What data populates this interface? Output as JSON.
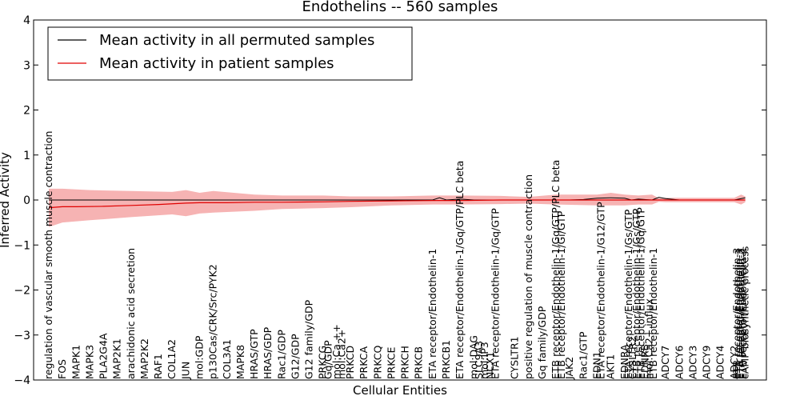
{
  "chart_data": {
    "type": "line",
    "title": "Endothelins -- 560 samples",
    "xlabel": "Cellular Entities",
    "ylabel": "Inferred Activity",
    "ylim": [
      -4,
      4
    ],
    "yticks": [
      4,
      3,
      2,
      1,
      0,
      -1,
      -2,
      -3,
      -4
    ],
    "grid": false,
    "legend_position": "top-left",
    "colors": {
      "permuted": "#000000",
      "patient": "#e00000",
      "band": "#f08080"
    },
    "series": [
      {
        "name": "Mean activity in all permuted samples"
      },
      {
        "name": "Mean activity in patient samples"
      }
    ],
    "labels": [
      "regulation of vascular smooth muscle contraction",
      "FOS",
      "MAPK1",
      "MAPK3",
      "PLA2G4A",
      "MAP2K1",
      "arachidonic acid secretion",
      "MAP2K2",
      "RAF1",
      "COL1A2",
      "JUN",
      "mol:GDP",
      "p130Cas/CRK/Src/PYK2",
      "COL3A1",
      "MAPK8",
      "HRAS/GTP",
      "HRAS/GDP",
      "Rac1/GDP",
      "G12/GDP",
      "G12 family/GDP",
      "PRKCG",
      "Gq/GDP",
      "mol:Ca ++",
      "mol:Ca2+",
      "PRKCD",
      "PRKCA",
      "PRKCQ",
      "PRKCE",
      "PRKCH",
      "PRKCB",
      "ETA receptor/Endothelin-1",
      "PRKCB1",
      "ETA receptor/Endothelin-1/Gq/GTP/PLC beta",
      "mol:DAG",
      "SLC9A3",
      "mol:IP3",
      "NCX1",
      "ETA receptor/Endothelin-1/Gq/GTP",
      "CYSLTR1",
      "positive regulation of muscle contraction",
      "Gq family/GDP",
      "ETB receptor/Endothelin-1/Gq/GTP/PLC beta",
      "ETB receptor/Endothelin-1/Gi/GTP",
      "JAK2",
      "Rac1/GTP",
      "EDN1",
      "ETA receptor/Endothelin-1/G12/GTP",
      "AKT1",
      "EDNRA",
      "ETA receptor/Endothelin-1/Gs/GTP",
      "CYSLTR2",
      "ETB receptor/Endothelin-1/Gs/GTP",
      "ETB receptor/Endothelin-1/Gq/GTP",
      "EDNRB",
      "mol:Ca2+ influx",
      "ETB receptor/Endothelin-1",
      "ADCY7",
      "ADCY6",
      "ADCY3",
      "ADCY9",
      "ADCY4",
      "ADCY2",
      "ETB receptor/Endothelin-3",
      "ETA receptor/Endothelin-3",
      "ETA receptor/Endothelin-2",
      "ETB receptor/Endothelin-2",
      "cAMP biosynthetic process"
    ],
    "label_positions": [
      0,
      1,
      2,
      3,
      4,
      5,
      6,
      7,
      8,
      9,
      10,
      11,
      12,
      13,
      14,
      15,
      16,
      17,
      18,
      19,
      20,
      20.4,
      21,
      21.4,
      22,
      23,
      24,
      25,
      26,
      27,
      28,
      29,
      30,
      31,
      31.4,
      31.8,
      32.2,
      32.6,
      34,
      35,
      36,
      37,
      37.4,
      38,
      39,
      40,
      40.3,
      41,
      42,
      42.3,
      42.6,
      42.9,
      43.2,
      43.5,
      43.8,
      44.1,
      45,
      46,
      47,
      48,
      49,
      50,
      50.2,
      50.35,
      50.5,
      50.65,
      50.8
    ],
    "x_range": [
      0,
      51
    ],
    "permuted_mean": {
      "x": [
        0,
        10,
        11,
        15,
        20,
        21,
        28,
        28.5,
        29,
        30,
        31,
        33,
        35,
        37,
        38,
        39,
        40,
        41,
        42,
        42.5,
        43,
        44,
        44.5,
        45,
        46,
        49,
        50,
        50.8
      ],
      "y": [
        0,
        0,
        0,
        0,
        0,
        0,
        0,
        0.05,
        0,
        0.02,
        0,
        0,
        0,
        0,
        0,
        0.01,
        0.04,
        0.05,
        0.04,
        0,
        0.02,
        0,
        0.06,
        0.03,
        0,
        0,
        0,
        0.05
      ]
    },
    "patient_mean": {
      "x": [
        0,
        1,
        2,
        4,
        6,
        8,
        10,
        11,
        13,
        15,
        17,
        20,
        22,
        25,
        28,
        30,
        33,
        35,
        38,
        40,
        42,
        44,
        46,
        48,
        50,
        50.8
      ],
      "y": [
        -0.17,
        -0.15,
        -0.15,
        -0.14,
        -0.12,
        -0.1,
        -0.07,
        -0.06,
        -0.06,
        -0.05,
        -0.05,
        -0.04,
        -0.03,
        -0.02,
        -0.01,
        -0.01,
        0,
        0,
        0,
        0,
        0,
        0,
        0,
        0,
        0,
        0
      ]
    },
    "band_upper": {
      "x": [
        0,
        1,
        3,
        6,
        9,
        10,
        11,
        12,
        15,
        17,
        20,
        22,
        25,
        28,
        30,
        33,
        35,
        37,
        40,
        41,
        42,
        43,
        44,
        44.5,
        45,
        48,
        50,
        50.5,
        50.8
      ],
      "y": [
        0.25,
        0.25,
        0.22,
        0.2,
        0.18,
        0.22,
        0.16,
        0.2,
        0.12,
        0.1,
        0.1,
        0.08,
        0.08,
        0.1,
        0.1,
        0.09,
        0.07,
        0.12,
        0.12,
        0.16,
        0.12,
        0.1,
        0.12,
        0.04,
        0.05,
        0.05,
        0.05,
        0.12,
        0.08
      ]
    },
    "band_lower": {
      "x": [
        0,
        1,
        3,
        6,
        9,
        10,
        11,
        12,
        15,
        17,
        20,
        22,
        25,
        28,
        30,
        33,
        35,
        37,
        40,
        41,
        42,
        43,
        44,
        44.5,
        45,
        48,
        50,
        50.5,
        50.8
      ],
      "y": [
        -0.6,
        -0.5,
        -0.45,
        -0.38,
        -0.32,
        -0.36,
        -0.3,
        -0.28,
        -0.24,
        -0.2,
        -0.18,
        -0.16,
        -0.12,
        -0.1,
        -0.1,
        -0.09,
        -0.08,
        -0.1,
        -0.12,
        -0.12,
        -0.12,
        -0.1,
        -0.1,
        -0.04,
        -0.05,
        -0.05,
        -0.05,
        -0.1,
        -0.05
      ]
    }
  }
}
